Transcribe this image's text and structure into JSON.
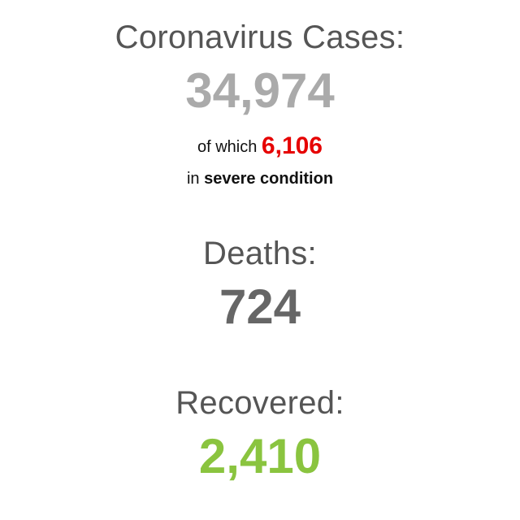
{
  "colors": {
    "heading": "#555555",
    "cases_number": "#aaaaaa",
    "severe_number": "#e60000",
    "deaths_number": "#666666",
    "recovered_number": "#8ac43f",
    "body_text": "#111111",
    "background": "#ffffff"
  },
  "cases": {
    "heading": "Coronavirus Cases:",
    "value": "34,974",
    "of_which_text": "of which",
    "severe_value": "6,106",
    "in_text": "in",
    "severe_label": "severe condition"
  },
  "deaths": {
    "heading": "Deaths:",
    "value": "724"
  },
  "recovered": {
    "heading": "Recovered:",
    "value": "2,410"
  }
}
